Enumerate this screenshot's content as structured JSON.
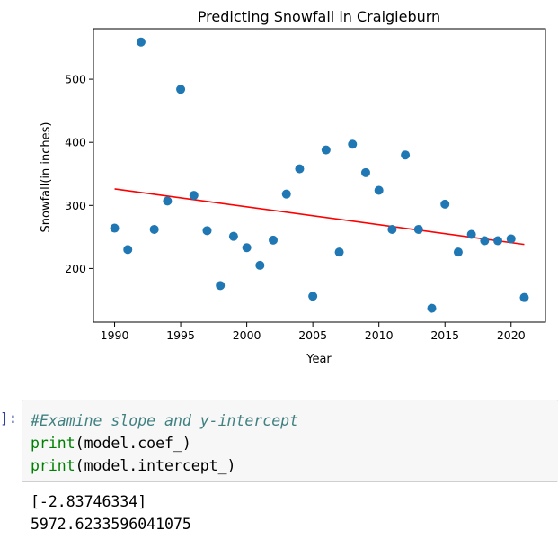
{
  "chart_data": {
    "type": "scatter",
    "title": "Predicting Snowfall in Craigieburn",
    "xlabel": "Year",
    "ylabel": "Snowfall(in inches)",
    "xlim": [
      1988.4,
      2022.6
    ],
    "ylim": [
      115,
      580
    ],
    "xticks": [
      1990,
      1995,
      2000,
      2005,
      2010,
      2015,
      2020
    ],
    "yticks": [
      200,
      300,
      400,
      500
    ],
    "point_color": "#1f77b4",
    "line_color": "#ff0000",
    "x": [
      1990,
      1991,
      1992,
      1993,
      1994,
      1995,
      1996,
      1997,
      1998,
      1999,
      2000,
      2001,
      2002,
      2003,
      2004,
      2005,
      2006,
      2007,
      2008,
      2009,
      2010,
      2011,
      2012,
      2013,
      2014,
      2015,
      2016,
      2017,
      2018,
      2019,
      2020,
      2021
    ],
    "y": [
      264,
      230,
      559,
      262,
      307,
      484,
      316,
      260,
      173,
      251,
      233,
      205,
      245,
      318,
      358,
      156,
      388,
      226,
      397,
      352,
      324,
      262,
      380,
      262,
      137,
      302,
      226,
      254,
      244,
      244,
      247,
      154
    ],
    "regression_line": {
      "x": [
        1990,
        2021
      ],
      "y": [
        326.2,
        238.2
      ]
    }
  },
  "cell": {
    "prompt": "]:",
    "lines": [
      {
        "kind": "comment",
        "text": "#Examine slope and y-intercept"
      },
      {
        "kind": "call",
        "fn": "print",
        "arg": "(model.coef_)"
      },
      {
        "kind": "call",
        "fn": "print",
        "arg": "(model.intercept_)"
      }
    ]
  },
  "output": {
    "lines": [
      "[-2.83746334]",
      "5972.6233596041075"
    ]
  }
}
